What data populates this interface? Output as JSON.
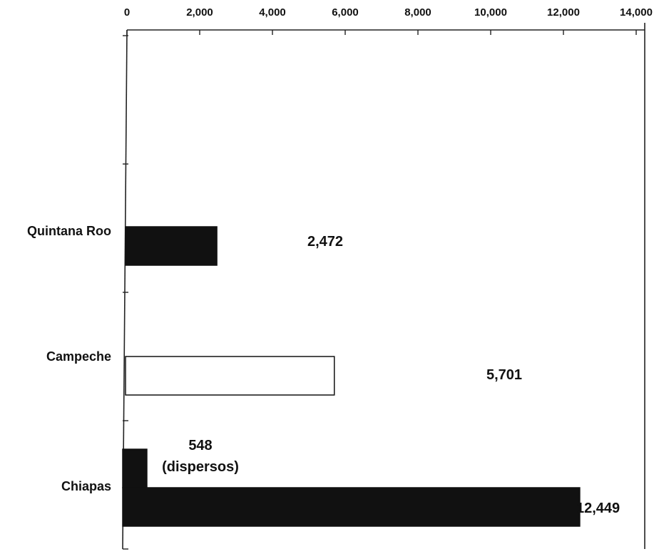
{
  "chart_data": {
    "type": "bar",
    "orientation": "horizontal",
    "categories": [
      "Quintana Roo",
      "Campeche",
      "Chiapas"
    ],
    "series": [
      {
        "values": [
          2472,
          5701,
          12449
        ],
        "colors": [
          "#111111",
          "#ffffff",
          "#111111"
        ]
      },
      {
        "values": [
          null,
          null,
          548
        ],
        "colors": [
          null,
          null,
          "#111111"
        ]
      }
    ],
    "data_labels": [
      {
        "category": "Quintana Roo",
        "text": "2,472"
      },
      {
        "category": "Campeche",
        "text": "5,701"
      },
      {
        "category": "Chiapas",
        "lines": [
          "548",
          "(dispersos)"
        ]
      },
      {
        "category": "Chiapas",
        "text": "12,449"
      }
    ],
    "x_ticks": [
      "0",
      "2,000",
      "4,000",
      "6,000",
      "8,000",
      "10,000",
      "12,000",
      "14,000"
    ],
    "xlim": [
      0,
      14000
    ],
    "x_axis_position": "top",
    "grid": false,
    "legend": "none",
    "title": "",
    "xlabel": "",
    "ylabel": ""
  }
}
